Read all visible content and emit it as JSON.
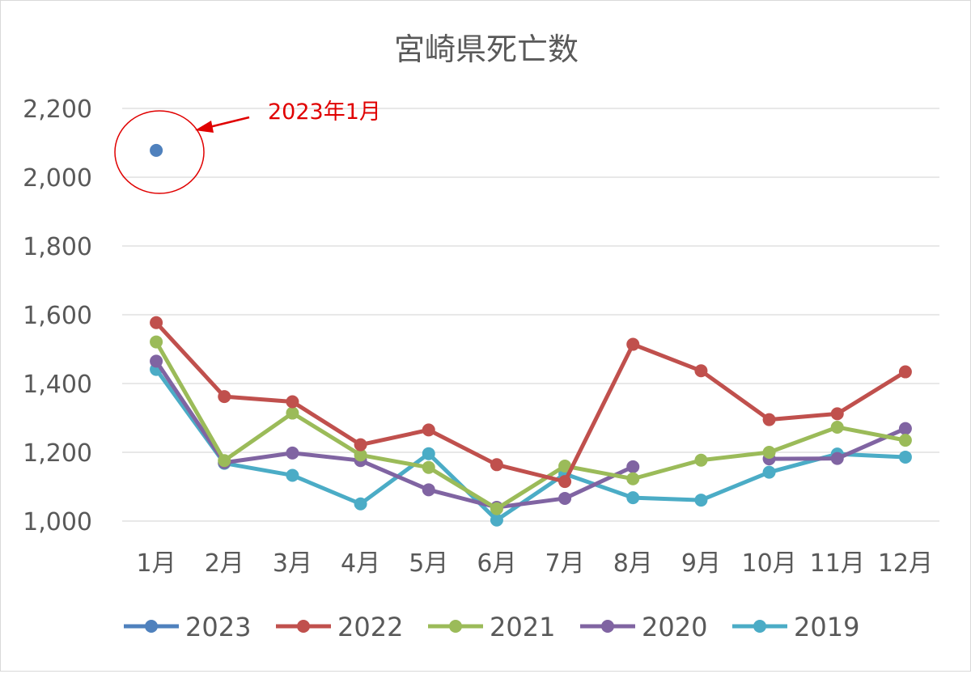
{
  "chart_data": {
    "type": "line",
    "title": "宮崎県死亡数",
    "xlabel": "",
    "ylabel": "",
    "categories": [
      "1月",
      "2月",
      "3月",
      "4月",
      "5月",
      "6月",
      "7月",
      "8月",
      "9月",
      "10月",
      "11月",
      "12月"
    ],
    "ylim": [
      1000,
      2200
    ],
    "yticks": [
      1000,
      1200,
      1400,
      1600,
      1800,
      2000,
      2200
    ],
    "ytick_labels": [
      "1,000",
      "1,200",
      "1,400",
      "1,600",
      "1,800",
      "2,000",
      "2,200"
    ],
    "grid": true,
    "legend_position": "bottom",
    "series": [
      {
        "name": "2023",
        "color": "#4f81bd",
        "values": [
          2078,
          null,
          null,
          null,
          null,
          null,
          null,
          null,
          null,
          null,
          null,
          null
        ]
      },
      {
        "name": "2022",
        "color": "#c0504d",
        "values": [
          1577,
          1362,
          1347,
          1222,
          1265,
          1164,
          1115,
          1514,
          1437,
          1295,
          1312,
          1434
        ]
      },
      {
        "name": "2021",
        "color": "#9bbb59",
        "values": [
          1521,
          1176,
          1314,
          1192,
          1156,
          1036,
          1160,
          1123,
          1177,
          1200,
          1273,
          1235
        ]
      },
      {
        "name": "2020",
        "color": "#8064a2",
        "values": [
          1465,
          1170,
          1198,
          1176,
          1091,
          1040,
          1066,
          1158,
          null,
          1181,
          1182,
          1269
        ]
      },
      {
        "name": "2019",
        "color": "#4bacc6",
        "values": [
          1441,
          1168,
          1133,
          1050,
          1196,
          1003,
          1137,
          1068,
          1061,
          1142,
          1195,
          1186
        ]
      }
    ],
    "annotation": {
      "text": "2023年1月",
      "color": "#e00000"
    }
  }
}
